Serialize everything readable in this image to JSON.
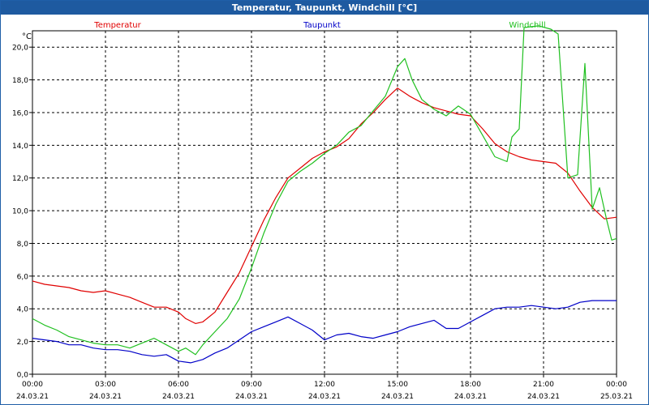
{
  "window": {
    "title": "Temperatur, Taupunkt, Windchill [°C]"
  },
  "chart_data": {
    "type": "line",
    "unit_label": "°C",
    "ylim": [
      0,
      21
    ],
    "y_ticks": [
      0,
      2,
      4,
      6,
      8,
      10,
      12,
      14,
      16,
      18,
      20
    ],
    "y_tick_labels": [
      "0,0",
      "2,0",
      "4,0",
      "6,0",
      "8,0",
      "10,0",
      "12,0",
      "14,0",
      "16,0",
      "18,0",
      "20,0"
    ],
    "xlim": [
      0,
      24
    ],
    "x_ticks": [
      0,
      3,
      6,
      9,
      12,
      15,
      18,
      21,
      24
    ],
    "x_tick_labels": [
      "00:00",
      "03:00",
      "06:00",
      "09:00",
      "12:00",
      "15:00",
      "18:00",
      "21:00",
      "00:00"
    ],
    "x_date_labels": [
      "24.03.21",
      "24.03.21",
      "24.03.21",
      "24.03.21",
      "24.03.21",
      "24.03.21",
      "24.03.21",
      "24.03.21",
      "25.03.21"
    ],
    "grid": true,
    "legend_placement": "top",
    "series": [
      {
        "name": "Temperatur",
        "color": "#e00000",
        "points": [
          [
            0,
            5.7
          ],
          [
            0.5,
            5.5
          ],
          [
            1,
            5.4
          ],
          [
            1.5,
            5.3
          ],
          [
            2,
            5.1
          ],
          [
            2.5,
            5.0
          ],
          [
            3,
            5.1
          ],
          [
            3.5,
            4.9
          ],
          [
            4,
            4.7
          ],
          [
            4.5,
            4.4
          ],
          [
            5,
            4.1
          ],
          [
            5.5,
            4.1
          ],
          [
            6,
            3.8
          ],
          [
            6.3,
            3.4
          ],
          [
            6.7,
            3.1
          ],
          [
            7,
            3.2
          ],
          [
            7.5,
            3.8
          ],
          [
            8,
            5.0
          ],
          [
            8.5,
            6.2
          ],
          [
            9,
            7.8
          ],
          [
            9.5,
            9.4
          ],
          [
            10,
            10.8
          ],
          [
            10.5,
            12.0
          ],
          [
            11,
            12.6
          ],
          [
            11.5,
            13.2
          ],
          [
            12,
            13.6
          ],
          [
            12.5,
            13.9
          ],
          [
            13,
            14.4
          ],
          [
            13.5,
            15.3
          ],
          [
            14,
            16.0
          ],
          [
            14.5,
            16.8
          ],
          [
            15,
            17.5
          ],
          [
            15.5,
            17.0
          ],
          [
            16,
            16.6
          ],
          [
            16.5,
            16.3
          ],
          [
            17,
            16.1
          ],
          [
            17.5,
            15.9
          ],
          [
            18,
            15.8
          ],
          [
            18.5,
            15.0
          ],
          [
            19,
            14.1
          ],
          [
            19.5,
            13.6
          ],
          [
            20,
            13.3
          ],
          [
            20.5,
            13.1
          ],
          [
            21,
            13.0
          ],
          [
            21.5,
            12.9
          ],
          [
            22,
            12.3
          ],
          [
            22.5,
            11.2
          ],
          [
            23,
            10.2
          ],
          [
            23.5,
            9.5
          ],
          [
            24,
            9.6
          ]
        ]
      },
      {
        "name": "Taupunkt",
        "color": "#0000c8",
        "points": [
          [
            0,
            2.2
          ],
          [
            0.5,
            2.1
          ],
          [
            1,
            2.0
          ],
          [
            1.5,
            1.8
          ],
          [
            2,
            1.8
          ],
          [
            2.5,
            1.6
          ],
          [
            3,
            1.5
          ],
          [
            3.5,
            1.5
          ],
          [
            4,
            1.4
          ],
          [
            4.5,
            1.2
          ],
          [
            5,
            1.1
          ],
          [
            5.5,
            1.2
          ],
          [
            6,
            0.8
          ],
          [
            6.5,
            0.7
          ],
          [
            7,
            0.9
          ],
          [
            7.5,
            1.3
          ],
          [
            8,
            1.6
          ],
          [
            8.5,
            2.1
          ],
          [
            9,
            2.6
          ],
          [
            9.5,
            2.9
          ],
          [
            10,
            3.2
          ],
          [
            10.5,
            3.5
          ],
          [
            11,
            3.1
          ],
          [
            11.5,
            2.7
          ],
          [
            12,
            2.1
          ],
          [
            12.5,
            2.4
          ],
          [
            13,
            2.5
          ],
          [
            13.5,
            2.3
          ],
          [
            14,
            2.2
          ],
          [
            14.5,
            2.4
          ],
          [
            15,
            2.6
          ],
          [
            15.5,
            2.9
          ],
          [
            16,
            3.1
          ],
          [
            16.5,
            3.3
          ],
          [
            17,
            2.8
          ],
          [
            17.5,
            2.8
          ],
          [
            18,
            3.2
          ],
          [
            18.5,
            3.6
          ],
          [
            19,
            4.0
          ],
          [
            19.5,
            4.1
          ],
          [
            20,
            4.1
          ],
          [
            20.5,
            4.2
          ],
          [
            21,
            4.1
          ],
          [
            21.5,
            4.0
          ],
          [
            22,
            4.1
          ],
          [
            22.5,
            4.4
          ],
          [
            23,
            4.5
          ],
          [
            23.5,
            4.5
          ],
          [
            24,
            4.5
          ]
        ]
      },
      {
        "name": "Windchill",
        "color": "#20c020",
        "points": [
          [
            0,
            3.4
          ],
          [
            0.5,
            3.0
          ],
          [
            1,
            2.7
          ],
          [
            1.5,
            2.3
          ],
          [
            2,
            2.1
          ],
          [
            2.5,
            1.9
          ],
          [
            3,
            1.8
          ],
          [
            3.5,
            1.8
          ],
          [
            4,
            1.6
          ],
          [
            4.5,
            1.9
          ],
          [
            5,
            2.2
          ],
          [
            5.5,
            1.8
          ],
          [
            6,
            1.4
          ],
          [
            6.3,
            1.6
          ],
          [
            6.7,
            1.2
          ],
          [
            7,
            1.8
          ],
          [
            7.5,
            2.6
          ],
          [
            8,
            3.4
          ],
          [
            8.5,
            4.6
          ],
          [
            9,
            6.5
          ],
          [
            9.5,
            8.6
          ],
          [
            10,
            10.4
          ],
          [
            10.5,
            11.8
          ],
          [
            11,
            12.4
          ],
          [
            11.5,
            12.9
          ],
          [
            12,
            13.5
          ],
          [
            12.5,
            14.0
          ],
          [
            13,
            14.8
          ],
          [
            13.5,
            15.2
          ],
          [
            14,
            16.1
          ],
          [
            14.5,
            17.0
          ],
          [
            15,
            18.8
          ],
          [
            15.3,
            19.3
          ],
          [
            15.6,
            18.0
          ],
          [
            16,
            16.8
          ],
          [
            16.5,
            16.2
          ],
          [
            17,
            15.8
          ],
          [
            17.5,
            16.4
          ],
          [
            18,
            15.9
          ],
          [
            18.5,
            14.6
          ],
          [
            19,
            13.3
          ],
          [
            19.5,
            13.0
          ],
          [
            19.7,
            14.5
          ],
          [
            20,
            15.0
          ],
          [
            20.2,
            21.2
          ],
          [
            20.8,
            21.3
          ],
          [
            21.3,
            21.1
          ],
          [
            21.6,
            20.8
          ],
          [
            22,
            12.0
          ],
          [
            22.4,
            12.2
          ],
          [
            22.7,
            19.0
          ],
          [
            23,
            10.1
          ],
          [
            23.3,
            11.4
          ],
          [
            23.6,
            9.4
          ],
          [
            23.8,
            8.2
          ],
          [
            24,
            8.3
          ]
        ]
      }
    ]
  }
}
